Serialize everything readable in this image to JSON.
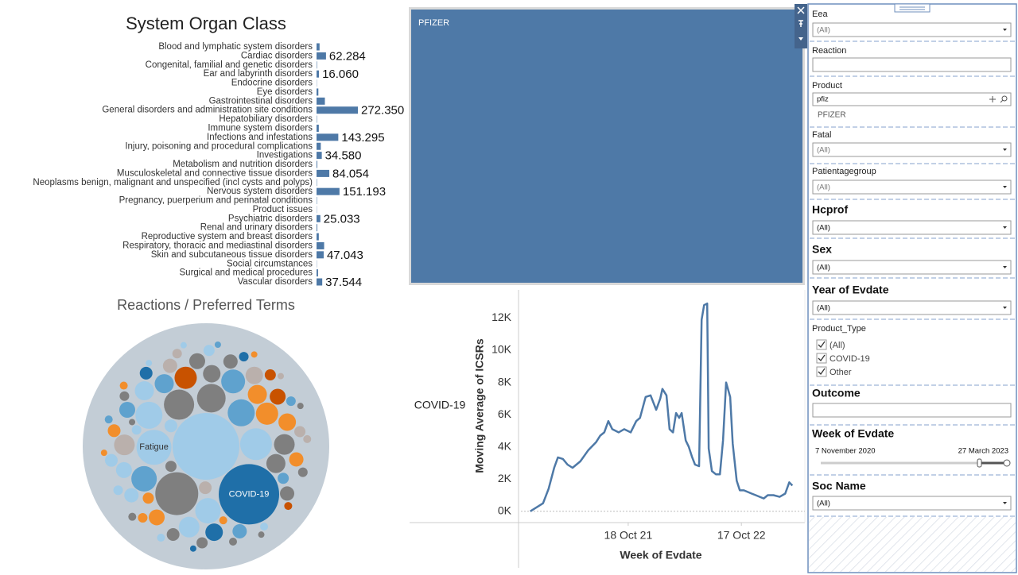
{
  "chart_data": [
    {
      "type": "bar",
      "title": "System Organ Class",
      "categories": [
        "Blood and lymphatic system disorders",
        "Cardiac disorders",
        "Congenital, familial and genetic disorders",
        "Ear and labyrinth disorders",
        "Endocrine disorders",
        "Eye disorders",
        "Gastrointestinal disorders",
        "General disorders and administration site conditions",
        "Hepatobiliary disorders",
        "Immune system disorders",
        "Infections and infestations",
        "Injury, poisoning and procedural complications",
        "Investigations",
        "Metabolism and nutrition disorders",
        "Musculoskeletal and connective tissue disorders",
        "Neoplasms benign, malignant and unspecified (incl cysts and polyps)",
        "Nervous system disorders",
        "Pregnancy, puerperium and perinatal conditions",
        "Product issues",
        "Psychiatric disorders",
        "Renal and urinary disorders",
        "Reproductive system and breast disorders",
        "Respiratory, thoracic and mediastinal disorders",
        "Skin and subcutaneous tissue disorders",
        "Social circumstances",
        "Surgical and medical procedures",
        "Vascular disorders"
      ],
      "values": [
        20000,
        62284,
        3000,
        16060,
        1500,
        12000,
        55000,
        272350,
        2500,
        15000,
        143295,
        28000,
        34580,
        5000,
        84054,
        2500,
        151193,
        2500,
        1500,
        25033,
        5000,
        15000,
        50000,
        47043,
        1500,
        10000,
        37544
      ],
      "value_labels": [
        null,
        "62.284",
        null,
        "16.060",
        null,
        null,
        null,
        "272.350",
        null,
        null,
        "143.295",
        null,
        "34.580",
        null,
        "84.054",
        null,
        "151.193",
        null,
        null,
        "25.033",
        null,
        null,
        null,
        "47.043",
        null,
        null,
        "37.544"
      ],
      "color": "#4e79a7"
    },
    {
      "type": "bubble",
      "title": "Reactions / Preferred Terms",
      "categories": [
        null,
        "COVID-19",
        null,
        "Fatigue",
        null,
        null,
        null,
        null,
        null,
        null,
        null,
        null,
        null,
        null,
        null,
        null,
        null,
        null,
        null,
        null,
        null,
        null,
        null,
        null,
        null,
        null,
        null,
        null,
        null,
        null,
        null,
        null,
        null,
        null,
        null,
        null,
        null,
        null,
        null,
        null,
        null,
        null,
        null,
        null,
        null,
        null,
        null,
        null,
        null,
        null,
        null,
        null,
        null,
        null,
        null,
        null,
        null,
        null,
        null,
        null,
        null,
        null,
        null,
        null,
        null,
        null,
        null,
        null,
        null,
        null,
        null,
        null,
        null,
        null,
        null,
        null
      ],
      "values": [
        1764,
        1444,
        729,
        484,
        400,
        361,
        324,
        289,
        289,
        256,
        256,
        225,
        196,
        196,
        169,
        169,
        169,
        144,
        144,
        144,
        144,
        121,
        121,
        121,
        121,
        100,
        100,
        100,
        100,
        100,
        81,
        81,
        81,
        81,
        81,
        81,
        64,
        64,
        64,
        64,
        64,
        64,
        49,
        49,
        49,
        49,
        49,
        49,
        49,
        36,
        36,
        36,
        36,
        36,
        36,
        36,
        36,
        25,
        25,
        25,
        25,
        25,
        25,
        25,
        25,
        25,
        16,
        16,
        16,
        16,
        16,
        16,
        16,
        16,
        16,
        16
      ],
      "colors": [
        "#a0cbe8",
        "#1f6fa8",
        "#7f7f7f",
        "#a0cbe8",
        "#a0cbe8",
        "#7f7f7f",
        "#7f7f7f",
        "#5fa2ce",
        "#a0cbe8",
        "#a0cbe8",
        "#5fa2ce",
        "#5fa2ce",
        "#f28e2b",
        "#c85200",
        "#7f7f7f",
        "#bab0ac",
        "#a0cbe8",
        "#7f7f7f",
        "#f28e2b",
        "#5fa2ce",
        "#a0cbe8",
        "#7f7f7f",
        "#f28e2b",
        "#bab0ac",
        "#1f6fa8",
        "#a0cbe8",
        "#7f7f7f",
        "#f28e2b",
        "#5fa2ce",
        "#c85200",
        "#bab0ac",
        "#7f7f7f",
        "#a0cbe8",
        "#f28e2b",
        "#5fa2ce",
        "#7f7f7f",
        "#a0cbe8",
        "#bab0ac",
        "#f28e2b",
        "#7f7f7f",
        "#1f6fa8",
        "#a0cbe8",
        "#7f7f7f",
        "#f28e2b",
        "#5fa2ce",
        "#bab0ac",
        "#a0cbe8",
        "#c85200",
        "#7f7f7f",
        "#a0cbe8",
        "#f28e2b",
        "#7f7f7f",
        "#5fa2ce",
        "#bab0ac",
        "#1f6fa8",
        "#a0cbe8",
        "#7f7f7f",
        "#f28e2b",
        "#a0cbe8",
        "#7f7f7f",
        "#5fa2ce",
        "#bab0ac",
        "#c85200",
        "#a0cbe8",
        "#7f7f7f",
        "#f28e2b",
        "#7f7f7f",
        "#a0cbe8",
        "#f28e2b",
        "#5fa2ce",
        "#bab0ac",
        "#7f7f7f",
        "#1f6fa8",
        "#a0cbe8",
        "#f28e2b",
        "#7f7f7f"
      ]
    },
    {
      "type": "treemap",
      "categories": [
        "PFIZER"
      ],
      "color": "#4e79a7"
    },
    {
      "type": "line",
      "row_label": "COVID-19",
      "x_label": "Week of Evdate",
      "y_label": "Moving Average of ICSRs",
      "x": [
        "2020-12-07",
        "2021-01-17",
        "2021-02-04",
        "2021-02-22",
        "2021-03-06",
        "2021-03-22",
        "2021-04-06",
        "2021-04-22",
        "2021-05-17",
        "2021-06-12",
        "2021-07-07",
        "2021-07-20",
        "2021-08-02",
        "2021-08-15",
        "2021-08-28",
        "2021-09-17",
        "2021-10-05",
        "2021-10-26",
        "2021-11-13",
        "2021-11-25",
        "2021-12-13",
        "2021-12-29",
        "2022-01-16",
        "2022-01-29",
        "2022-02-05",
        "2022-02-18",
        "2022-02-28",
        "2022-03-11",
        "2022-03-21",
        "2022-03-31",
        "2022-04-08",
        "2022-04-21",
        "2022-05-01",
        "2022-05-11",
        "2022-05-21",
        "2022-06-03",
        "2022-06-11",
        "2022-06-19",
        "2022-06-29",
        "2022-07-04",
        "2022-07-14",
        "2022-07-27",
        "2022-08-09",
        "2022-08-19",
        "2022-08-29",
        "2022-09-11",
        "2022-09-19",
        "2022-10-02",
        "2022-10-12",
        "2022-10-25",
        "2022-11-07",
        "2022-11-19",
        "2022-12-02",
        "2022-12-15",
        "2022-12-28",
        "2023-01-10",
        "2023-01-28",
        "2023-02-17",
        "2023-03-07",
        "2023-03-20",
        "2023-03-30"
      ],
      "series": [
        {
          "color": "#4e79a7",
          "values": [
            0,
            500,
            1400,
            2700,
            3350,
            3250,
            2900,
            2700,
            3100,
            3800,
            4300,
            4700,
            4900,
            5600,
            5100,
            4900,
            5100,
            4900,
            5600,
            5800,
            7100,
            7200,
            6300,
            7000,
            7600,
            7200,
            5100,
            4900,
            6100,
            5800,
            6100,
            4400,
            4000,
            3400,
            2900,
            2800,
            11900,
            12800,
            12900,
            3900,
            2500,
            2300,
            2300,
            4400,
            8000,
            7100,
            4200,
            1900,
            1300,
            1300,
            1200,
            1100,
            1000,
            900,
            800,
            1000,
            1000,
            900,
            1100,
            1800,
            1600
          ]
        }
      ],
      "xlim": [
        "2020-11-07",
        "2023-05-04"
      ],
      "xticks": [
        {
          "value": "2021-10-18",
          "label": "18 Oct 21"
        },
        {
          "value": "2022-10-17",
          "label": "17 Oct 22"
        }
      ],
      "ylim": [
        -700,
        13600
      ],
      "yticks": [
        {
          "value": 0,
          "label": "0K"
        },
        {
          "value": 2000,
          "label": "2K"
        },
        {
          "value": 4000,
          "label": "4K"
        },
        {
          "value": 6000,
          "label": "6K"
        },
        {
          "value": 8000,
          "label": "8K"
        },
        {
          "value": 10000,
          "label": "10K"
        },
        {
          "value": 12000,
          "label": "12K"
        }
      ]
    }
  ],
  "filters": [
    {
      "title": "Eea",
      "value": "(All)"
    },
    {
      "title": "Reaction"
    },
    {
      "title": "Product",
      "search": "pfiz",
      "items": [
        "PFIZER"
      ]
    },
    {
      "title": "Fatal",
      "value": "(All)"
    },
    {
      "title": "Patientagegroup",
      "value": "(All)"
    },
    {
      "title": "Hcprof",
      "value": "(All)"
    },
    {
      "title": "Sex",
      "value": "(All)"
    },
    {
      "title": "Year of Evdate",
      "value": "(All)"
    },
    {
      "title": "Product_Type",
      "options": [
        "(All)",
        "COVID-19",
        "Other"
      ]
    },
    {
      "title": "Outcome"
    },
    {
      "title": "Week of Evdate",
      "range": [
        "7 November 2020",
        "27 March 2023"
      ]
    },
    {
      "title": "Soc Name",
      "value": "(All)"
    }
  ]
}
